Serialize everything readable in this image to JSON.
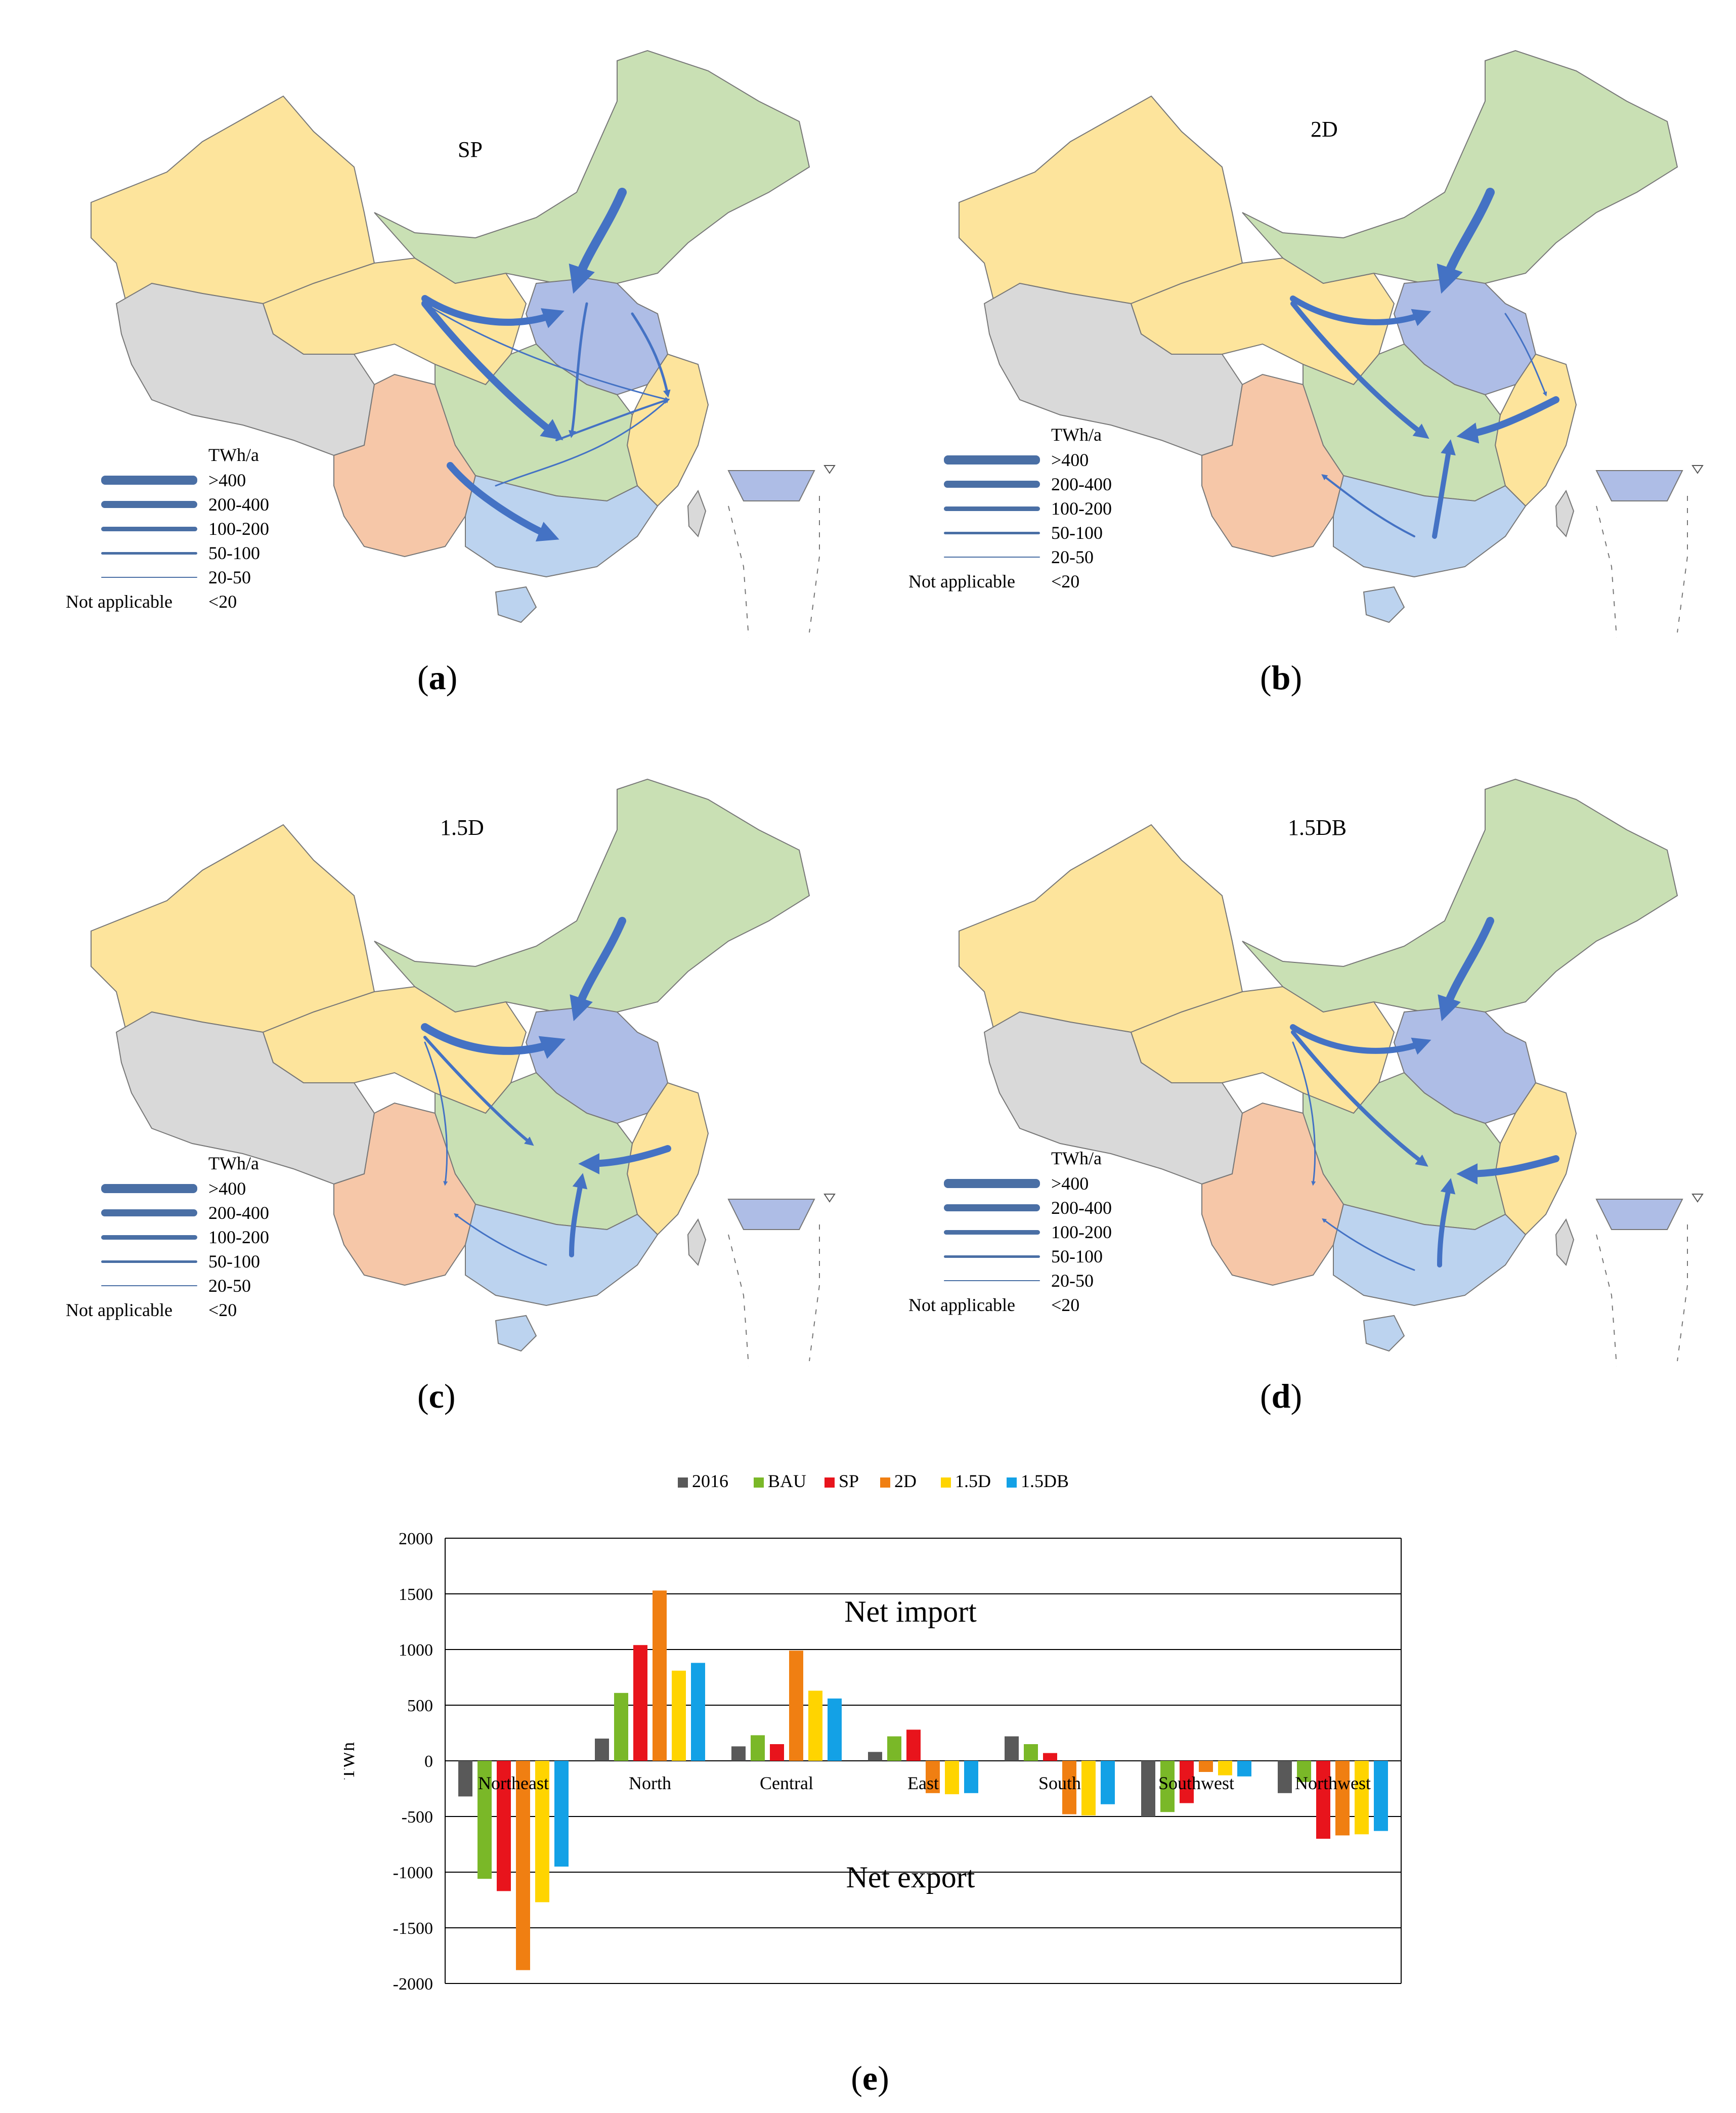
{
  "panels": [
    {
      "id": "a",
      "scenario": "SP",
      "caption_letter": "a"
    },
    {
      "id": "b",
      "scenario": "2D",
      "caption_letter": "b"
    },
    {
      "id": "c",
      "scenario": "1.5D",
      "caption_letter": "c"
    },
    {
      "id": "d",
      "scenario": "1.5DB",
      "caption_letter": "d"
    }
  ],
  "map_legend": {
    "unit": "TWh/a",
    "entries": [
      ">400",
      "200-400",
      "100-200",
      "50-100",
      "20-50",
      "<20"
    ],
    "not_applicable": "Not applicable"
  },
  "colors": {
    "northeast": "#c9e0b4",
    "north": "#aebde6",
    "northwest": "#fde49c",
    "southwest": "#f6c7a8",
    "south": "#bcd3ef",
    "central": "#c9e0b4",
    "east": "#fde49c",
    "na": "#d9d9d9",
    "flow": "#4472c4",
    "border": "#777777"
  },
  "chart_data": {
    "type": "bar",
    "caption_letter": "e",
    "ylabel": "TWh",
    "ylim": [
      -2000,
      2000
    ],
    "yticks": [
      "2000",
      "1500",
      "1000",
      "500",
      "0",
      "-500",
      "-1000",
      "-1500",
      "-2000"
    ],
    "categories": [
      "Northeast",
      "North",
      "Central",
      "East",
      "South",
      "Southwest",
      "Northwest"
    ],
    "series": [
      {
        "name": "2016",
        "color": "#595959",
        "values": [
          -320,
          200,
          130,
          80,
          220,
          -500,
          -290
        ]
      },
      {
        "name": "BAU",
        "color": "#7ab828",
        "values": [
          -1060,
          610,
          230,
          220,
          150,
          -460,
          -190
        ]
      },
      {
        "name": "SP",
        "color": "#e8141c",
        "values": [
          -1170,
          1040,
          150,
          280,
          70,
          -380,
          -700
        ]
      },
      {
        "name": "2D",
        "color": "#f07f12",
        "values": [
          -1880,
          1530,
          990,
          -290,
          -480,
          -100,
          -670
        ]
      },
      {
        "name": "1.5D",
        "color": "#ffd400",
        "values": [
          -1270,
          810,
          630,
          -300,
          -490,
          -130,
          -660
        ]
      },
      {
        "name": "1.5DB",
        "color": "#13a1e6",
        "values": [
          -950,
          880,
          560,
          -290,
          -390,
          -140,
          -630
        ]
      }
    ],
    "annotations": [
      "Net import",
      "Net export"
    ],
    "gridlines": true
  }
}
